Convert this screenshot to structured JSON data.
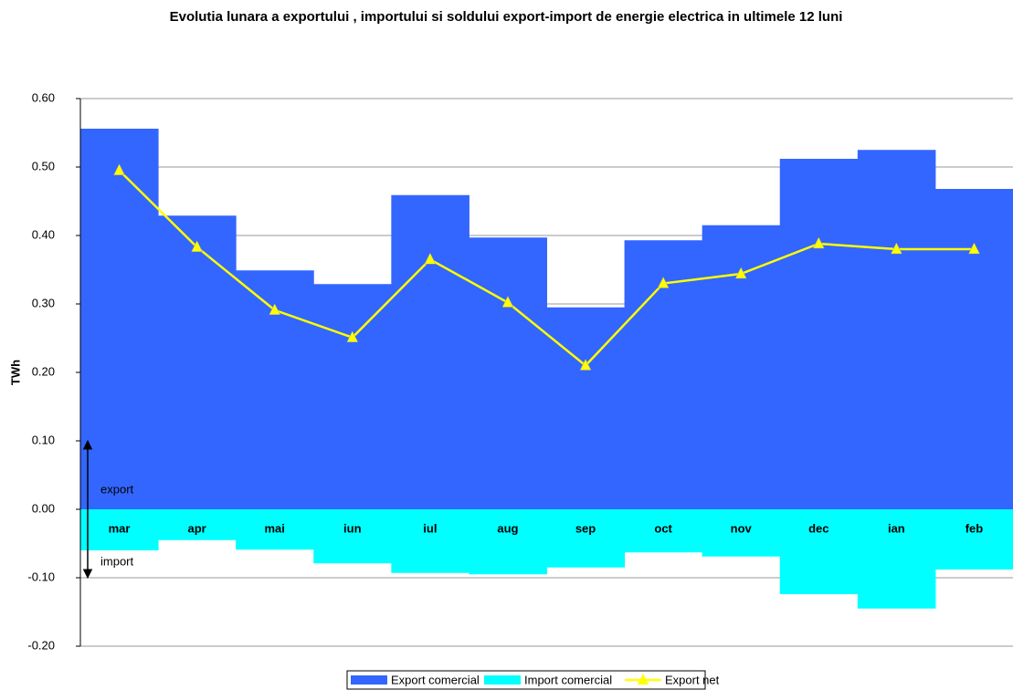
{
  "chart_data": {
    "type": "bar",
    "title": "Evolutia lunara a exportului , importului si soldului export-import de energie electrica in ultimele 12 luni",
    "ylabel": "TWh",
    "categories": [
      "mar",
      "apr",
      "mai",
      "iun",
      "iul",
      "aug",
      "sep",
      "oct",
      "nov",
      "dec",
      "ian",
      "feb"
    ],
    "series": [
      {
        "name": "Export comercial",
        "type": "bar",
        "color": "#3366ff",
        "values": [
          0.556,
          0.429,
          0.349,
          0.329,
          0.459,
          0.397,
          0.295,
          0.393,
          0.415,
          0.512,
          0.525,
          0.468
        ]
      },
      {
        "name": "Import comercial",
        "type": "bar",
        "color": "#00ffff",
        "values": [
          -0.06,
          -0.045,
          -0.059,
          -0.079,
          -0.093,
          -0.095,
          -0.085,
          -0.063,
          -0.069,
          -0.124,
          -0.145,
          -0.088
        ]
      },
      {
        "name": "Export net",
        "type": "line",
        "color": "#ffff00",
        "values": [
          0.495,
          0.383,
          0.291,
          0.251,
          0.365,
          0.302,
          0.21,
          0.33,
          0.344,
          0.388,
          0.38,
          0.38
        ]
      }
    ],
    "annotations": [
      "export",
      "import"
    ],
    "ylim": [
      -0.2,
      0.6
    ],
    "yticks": [
      {
        "value": -0.2,
        "label": "-0.20"
      },
      {
        "value": -0.1,
        "label": "-0.10"
      },
      {
        "value": 0,
        "label": "0.00"
      },
      {
        "value": 0.1,
        "label": "0.10"
      },
      {
        "value": 0.2,
        "label": "0.20"
      },
      {
        "value": 0.3,
        "label": "0.30"
      },
      {
        "value": 0.4,
        "label": "0.40"
      },
      {
        "value": 0.5,
        "label": "0.50"
      },
      {
        "value": 0.6,
        "label": "0.60"
      }
    ],
    "grid": true
  }
}
